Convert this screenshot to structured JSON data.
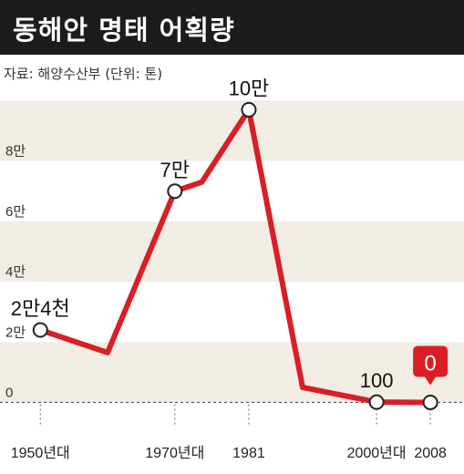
{
  "title": "동해안 명태 어획량",
  "source": "자료: 해양수산부 (단위: 톤)",
  "colors": {
    "line": "#d91e26",
    "band": "#f1ede4",
    "title_bg": "#1c1c1c",
    "badge": "#d91e26"
  },
  "chart_data": {
    "type": "line",
    "title": "동해안 명태 어획량",
    "ylabel": "",
    "xlabel": "",
    "unit": "톤",
    "ylim": [
      -5000,
      108000
    ],
    "y_ticks": [
      {
        "value": 0,
        "label": "0"
      },
      {
        "value": 20000,
        "label": "2만"
      },
      {
        "value": 40000,
        "label": "4만"
      },
      {
        "value": 60000,
        "label": "6만"
      },
      {
        "value": 80000,
        "label": "8만"
      }
    ],
    "x_ticks": [
      {
        "x": 1950,
        "label": "1950년대"
      },
      {
        "x": 1970,
        "label": "1970년대"
      },
      {
        "x": 1981,
        "label": "1981"
      },
      {
        "x": 2000,
        "label": "2000년대"
      },
      {
        "x": 2008,
        "label": "2008"
      }
    ],
    "xlim": [
      1944,
      2013
    ],
    "points": [
      {
        "x": 1950,
        "y": 24000,
        "label": "2만4천",
        "marker": true
      },
      {
        "x": 1960,
        "y": 16500
      },
      {
        "x": 1970,
        "y": 70000,
        "label": "7만",
        "marker": true
      },
      {
        "x": 1974,
        "y": 73000
      },
      {
        "x": 1981,
        "y": 97000,
        "label": "10만",
        "marker": true
      },
      {
        "x": 1989,
        "y": 5000
      },
      {
        "x": 2000,
        "y": 100,
        "label": "100",
        "marker": true
      },
      {
        "x": 2008,
        "y": 0,
        "label": "0",
        "marker": true,
        "badge": true
      }
    ]
  }
}
